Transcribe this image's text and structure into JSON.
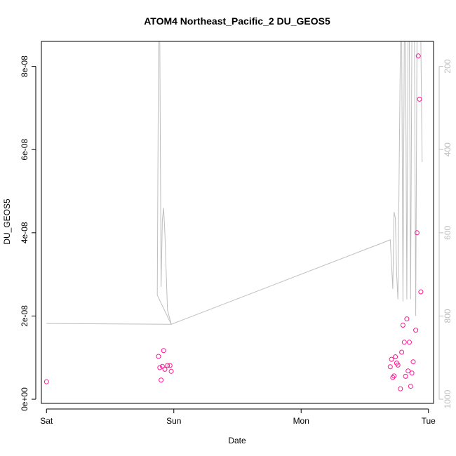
{
  "chart_data": {
    "type": "scatter",
    "title": "ATOM4 Northeast_Pacific_2 DU_GEOS5",
    "xlabel": "Date",
    "ylabel": "DU_GEOS5",
    "x_ticks": [
      "Sat",
      "Sun",
      "Mon",
      "Tue"
    ],
    "x_tick_values": [
      0,
      1,
      2,
      3
    ],
    "xlim": [
      -0.04,
      3.04
    ],
    "ylim": [
      -1e-09,
      8.6e-08
    ],
    "y_ticks": [
      "0e+00",
      "2e-08",
      "4e-08",
      "6e-08",
      "8e-08"
    ],
    "y_tick_values": [
      0,
      2e-08,
      4e-08,
      6e-08,
      8e-08
    ],
    "y2_label_color": "#bebebe",
    "y2_ticks": [
      "200",
      "400",
      "600",
      "800",
      "1000"
    ],
    "y2_tick_values": [
      200,
      400,
      600,
      800,
      1000
    ],
    "y2lim": [
      1010,
      140
    ],
    "grid": false,
    "series": [
      {
        "kind": "points",
        "color": "#ff1493",
        "x": [
          0.0,
          0.88,
          0.89,
          0.9,
          0.91,
          0.92,
          0.93,
          0.95,
          0.97,
          0.98,
          2.7,
          2.71,
          2.72,
          2.73,
          2.74,
          2.75,
          2.76,
          2.78,
          2.79,
          2.8,
          2.81,
          2.82,
          2.83,
          2.84,
          2.85,
          2.86,
          2.87,
          2.88,
          2.9,
          2.91,
          2.92,
          2.93,
          2.94
        ],
        "y": [
          4.2e-09,
          1.03e-08,
          7.6e-09,
          4.6e-09,
          7.9e-09,
          1.17e-08,
          7.2e-09,
          8.1e-09,
          8.1e-09,
          6.7e-09,
          7.8e-09,
          9.6e-09,
          5.2e-09,
          5.6e-09,
          1.02e-08,
          8.7e-09,
          8.2e-09,
          2.5e-09,
          1.13e-08,
          1.78e-08,
          1.37e-08,
          5.5e-09,
          1.93e-08,
          6.8e-09,
          1.37e-08,
          3.1e-09,
          6.3e-09,
          9e-09,
          1.66e-08,
          4e-08,
          8.25e-08,
          7.21e-08,
          2.58e-08
        ]
      },
      {
        "kind": "line",
        "color": "#bebebe",
        "axis": "right",
        "x": [
          0.0,
          0.98,
          0.87,
          0.88,
          0.89,
          0.9,
          0.91,
          0.92,
          0.93,
          0.95,
          0.98,
          2.7,
          2.72,
          2.73,
          2.74,
          2.75,
          2.76,
          2.78,
          2.79,
          2.8,
          2.81,
          2.82,
          2.83,
          2.84,
          2.85,
          2.86,
          2.87,
          2.88,
          2.89,
          2.9,
          2.91,
          2.92,
          2.93,
          2.94,
          2.95
        ],
        "y": [
          818,
          820,
          750,
          140,
          140,
          730,
          570,
          540,
          600,
          785,
          820,
          617,
          735,
          550,
          565,
          700,
          760,
          140,
          140,
          765,
          140,
          140,
          760,
          140,
          140,
          760,
          140,
          140,
          140,
          800,
          140,
          140,
          140,
          140,
          430
        ]
      }
    ]
  }
}
